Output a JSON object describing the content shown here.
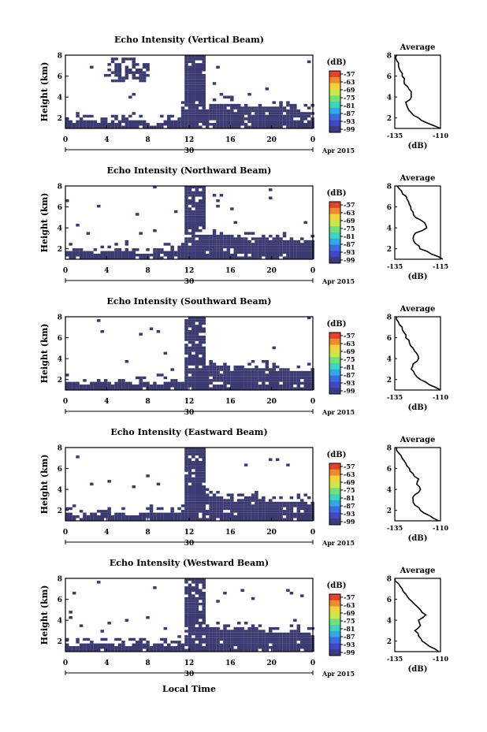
{
  "chart_data": [
    {
      "type": "heatmap",
      "title": "Echo Intensity (Vertical Beam)",
      "ylabel": "Height (km)",
      "x_ticks": [
        "0",
        "4",
        "8",
        "12",
        "16",
        "20",
        "0"
      ],
      "y_ticks": [
        "2",
        "4",
        "6",
        "8"
      ],
      "date_label": "30",
      "month_label": "Apr 2015",
      "xlim": [
        0,
        24
      ],
      "ylim": [
        1,
        8
      ],
      "colorbar_unit": "(dB)",
      "colorbar_ticks": [
        "-57",
        "-63",
        "-69",
        "-75",
        "-81",
        "-87",
        "-93",
        "-99"
      ],
      "profile": {
        "title": "Average",
        "xlabel": "(dB)",
        "x_ticks": [
          "-135",
          "-110"
        ],
        "xlim": [
          -135,
          -110
        ],
        "heights": [
          1,
          1.5,
          2,
          2.5,
          3,
          3.5,
          4,
          4.5,
          5,
          5.5,
          6,
          6.5,
          7,
          7.5,
          8
        ],
        "values": [
          -110,
          -117,
          -122,
          -126,
          -128,
          -129,
          -126,
          -126,
          -128,
          -130,
          -131,
          -132,
          -133,
          -134,
          -134
        ]
      }
    },
    {
      "type": "heatmap",
      "title": "Echo Intensity (Northward Beam)",
      "ylabel": "Height (km)",
      "x_ticks": [
        "0",
        "4",
        "8",
        "12",
        "16",
        "20",
        "0"
      ],
      "y_ticks": [
        "2",
        "4",
        "6",
        "8"
      ],
      "date_label": "30",
      "month_label": "Apr 2015",
      "xlim": [
        0,
        24
      ],
      "ylim": [
        1,
        8
      ],
      "colorbar_unit": "(dB)",
      "colorbar_ticks": [
        "-57",
        "-63",
        "-69",
        "-75",
        "-81",
        "-87",
        "-93",
        "-99"
      ],
      "profile": {
        "title": "Average",
        "xlabel": "(dB)",
        "x_ticks": [
          "-135",
          "-115"
        ],
        "xlim": [
          -135,
          -115
        ],
        "heights": [
          1,
          1.5,
          2,
          2.5,
          3,
          3.5,
          4,
          4.5,
          5,
          5.5,
          6,
          6.5,
          7,
          7.5,
          8
        ],
        "values": [
          -114,
          -119,
          -124,
          -126,
          -127,
          -126,
          -121,
          -122,
          -126,
          -127,
          -128,
          -129,
          -130,
          -132,
          -134
        ]
      }
    },
    {
      "type": "heatmap",
      "title": "Echo Intensity (Southward Beam)",
      "ylabel": "Height (km)",
      "x_ticks": [
        "0",
        "4",
        "8",
        "12",
        "16",
        "20",
        "0"
      ],
      "y_ticks": [
        "2",
        "4",
        "6",
        "8"
      ],
      "date_label": "30",
      "month_label": "Apr 2015",
      "xlim": [
        0,
        24
      ],
      "ylim": [
        1,
        8
      ],
      "colorbar_unit": "(dB)",
      "colorbar_ticks": [
        "-57",
        "-63",
        "-69",
        "-75",
        "-81",
        "-87",
        "-93",
        "-99"
      ],
      "profile": {
        "title": "Average",
        "xlabel": "(dB)",
        "x_ticks": [
          "-135",
          "-110"
        ],
        "xlim": [
          -135,
          -110
        ],
        "heights": [
          1,
          1.5,
          2,
          2.5,
          3,
          3.5,
          4,
          4.5,
          5,
          5.5,
          6,
          6.5,
          7,
          7.5,
          8
        ],
        "values": [
          -110,
          -116,
          -121,
          -124,
          -126,
          -125,
          -122,
          -123,
          -125,
          -127,
          -129,
          -130,
          -131,
          -133,
          -134
        ]
      }
    },
    {
      "type": "heatmap",
      "title": "Echo Intensity (Eastward Beam)",
      "ylabel": "Height (km)",
      "x_ticks": [
        "0",
        "4",
        "8",
        "12",
        "16",
        "20",
        "0"
      ],
      "y_ticks": [
        "2",
        "4",
        "6",
        "8"
      ],
      "date_label": "30",
      "month_label": "Apr 2015",
      "xlim": [
        0,
        24
      ],
      "ylim": [
        1,
        8
      ],
      "colorbar_unit": "(dB)",
      "colorbar_ticks": [
        "-57",
        "-63",
        "-69",
        "-75",
        "-81",
        "-87",
        "-93",
        "-99"
      ],
      "profile": {
        "title": "Average",
        "xlabel": "(dB)",
        "x_ticks": [
          "-135",
          "-110"
        ],
        "xlim": [
          -135,
          -110
        ],
        "heights": [
          1,
          1.5,
          2,
          2.5,
          3,
          3.5,
          4,
          4.5,
          5,
          5.5,
          6,
          6.5,
          7,
          7.5,
          8
        ],
        "values": [
          -111,
          -116,
          -121,
          -124,
          -125,
          -124,
          -121,
          -123,
          -122,
          -125,
          -127,
          -129,
          -131,
          -133,
          -134
        ]
      }
    },
    {
      "type": "heatmap",
      "title": "Echo Intensity (Westward Beam)",
      "ylabel": "Height (km)",
      "x_ticks": [
        "0",
        "4",
        "8",
        "12",
        "16",
        "20",
        "0"
      ],
      "y_ticks": [
        "2",
        "4",
        "6",
        "8"
      ],
      "date_label": "30",
      "month_label": "Apr 2015",
      "xlim": [
        0,
        24
      ],
      "ylim": [
        1,
        8
      ],
      "colorbar_unit": "(dB)",
      "colorbar_ticks": [
        "-57",
        "-63",
        "-69",
        "-75",
        "-81",
        "-87",
        "-93",
        "-99"
      ],
      "profile": {
        "title": "Average",
        "xlabel": "(dB)",
        "x_ticks": [
          "-135",
          "-110"
        ],
        "xlim": [
          -135,
          -110
        ],
        "heights": [
          1,
          1.5,
          2,
          2.5,
          3,
          3.5,
          4,
          4.5,
          5,
          5.5,
          6,
          6.5,
          7,
          7.5,
          8
        ],
        "values": [
          -111,
          -116,
          -120,
          -122,
          -124,
          -121,
          -122,
          -118,
          -121,
          -124,
          -127,
          -129,
          -131,
          -133,
          -135
        ]
      }
    }
  ],
  "xaxis_label": "Local Time",
  "colors": {
    "echo_fill": "#3b3b72",
    "colorbar": [
      "#e8402c",
      "#f08a2c",
      "#f2d43a",
      "#c6e84a",
      "#6fe07a",
      "#3ad6c2",
      "#32a8e6",
      "#3a6ee0",
      "#4048c8",
      "#3a3b80"
    ]
  }
}
